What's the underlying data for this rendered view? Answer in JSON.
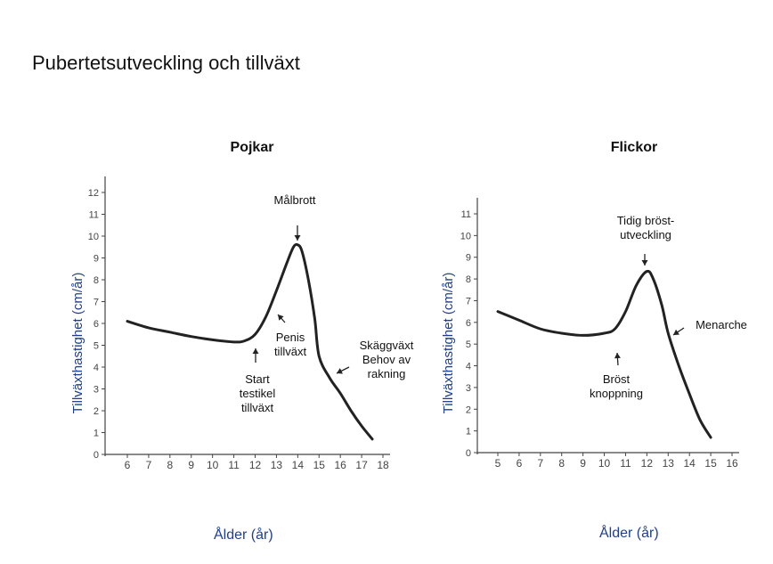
{
  "page": {
    "title": "Pubertetsutveckling och tillväxt"
  },
  "chart_data": [
    {
      "type": "line",
      "title": "Pojkar",
      "ylabel": "Tillväxthastighet (cm/år)",
      "xlabel": "Ålder (år)",
      "xlim": [
        6,
        18
      ],
      "ylim": [
        0,
        12
      ],
      "x_ticks": [
        6,
        7,
        8,
        9,
        10,
        11,
        12,
        13,
        14,
        15,
        16,
        17,
        18
      ],
      "y_ticks": [
        0,
        1,
        2,
        3,
        4,
        5,
        6,
        7,
        8,
        9,
        10,
        11,
        12
      ],
      "grid": false,
      "series": [
        {
          "x": [
            6,
            7,
            8,
            9,
            10,
            11,
            11.5,
            12,
            12.5,
            13,
            13.5,
            13.8,
            14,
            14.2,
            14.5,
            14.8,
            15,
            15.5,
            16,
            16.5,
            17,
            17.5
          ],
          "y": [
            6.1,
            5.8,
            5.6,
            5.4,
            5.25,
            5.15,
            5.2,
            5.5,
            6.3,
            7.5,
            8.8,
            9.5,
            9.6,
            9.3,
            8.0,
            6.2,
            4.5,
            3.5,
            2.8,
            2.0,
            1.3,
            0.7
          ]
        }
      ],
      "annotations": [
        {
          "text": [
            "Målbrott"
          ],
          "x": 14,
          "y": 9.6
        },
        {
          "text": [
            "Penis",
            "tillväxt"
          ],
          "x": 13,
          "y": 6.5
        },
        {
          "text": [
            "Start",
            "testikel",
            "tillväxt"
          ],
          "x": 12,
          "y": 5.3
        },
        {
          "text": [
            "Skäggväxt",
            "Behov av",
            "rakning"
          ],
          "x": 15,
          "y": 3.9
        }
      ]
    },
    {
      "type": "line",
      "title": "Flickor",
      "ylabel": "Tillväxthastighet (cm/år)",
      "xlabel": "Ålder (år)",
      "xlim": [
        5,
        16
      ],
      "ylim": [
        0,
        11
      ],
      "x_ticks": [
        5,
        6,
        7,
        8,
        9,
        10,
        11,
        12,
        13,
        14,
        15,
        16
      ],
      "y_ticks": [
        0,
        1,
        2,
        3,
        4,
        5,
        6,
        7,
        8,
        9,
        10,
        11
      ],
      "grid": false,
      "series": [
        {
          "x": [
            5,
            6,
            7,
            8,
            9,
            10,
            10.5,
            11,
            11.5,
            12,
            12.3,
            12.7,
            13,
            13.5,
            14,
            14.5,
            15
          ],
          "y": [
            6.5,
            6.1,
            5.7,
            5.5,
            5.4,
            5.5,
            5.7,
            6.5,
            7.7,
            8.35,
            8.0,
            6.8,
            5.5,
            4.0,
            2.7,
            1.5,
            0.7
          ]
        }
      ],
      "annotations": [
        {
          "text": [
            "Tidig bröst-",
            "utveckling"
          ],
          "x": 12,
          "y": 8.35
        },
        {
          "text": [
            "Menarche"
          ],
          "x": 13.2,
          "y": 5.8
        },
        {
          "text": [
            "Bröst",
            "knoppning"
          ],
          "x": 10.8,
          "y": 5.7
        }
      ]
    }
  ]
}
